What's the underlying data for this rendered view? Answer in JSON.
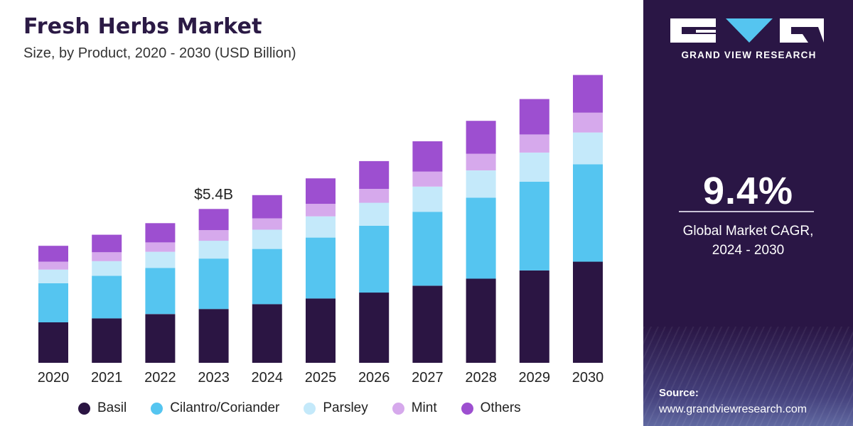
{
  "header": {
    "title": "Fresh Herbs Market",
    "subtitle": "Size, by Product, 2020 - 2030 (USD Billion)"
  },
  "chart_data": {
    "type": "bar",
    "stacked": true,
    "title": "Fresh Herbs Market",
    "subtitle": "Size, by Product, 2020 - 2030 (USD Billion)",
    "xlabel": "",
    "ylabel": "",
    "categories": [
      "2020",
      "2021",
      "2022",
      "2023",
      "2024",
      "2025",
      "2026",
      "2027",
      "2028",
      "2029",
      "2030"
    ],
    "series": [
      {
        "name": "Basil",
        "color": "#2b1543",
        "values": [
          1.43,
          1.57,
          1.72,
          1.9,
          2.07,
          2.27,
          2.48,
          2.72,
          2.97,
          3.26,
          3.57
        ]
      },
      {
        "name": "Cilantro/Coriander",
        "color": "#55c5f0",
        "values": [
          1.38,
          1.5,
          1.63,
          1.78,
          1.95,
          2.15,
          2.36,
          2.61,
          2.86,
          3.13,
          3.44
        ]
      },
      {
        "name": "Parsley",
        "color": "#c4e9fa",
        "values": [
          0.48,
          0.52,
          0.57,
          0.63,
          0.68,
          0.75,
          0.81,
          0.89,
          0.96,
          1.03,
          1.12
        ]
      },
      {
        "name": "Mint",
        "color": "#d6a9ec",
        "values": [
          0.28,
          0.31,
          0.33,
          0.37,
          0.4,
          0.44,
          0.49,
          0.53,
          0.59,
          0.64,
          0.7
        ]
      },
      {
        "name": "Others",
        "color": "#9d4fd0",
        "values": [
          0.56,
          0.62,
          0.68,
          0.75,
          0.82,
          0.9,
          0.98,
          1.07,
          1.16,
          1.25,
          1.33
        ]
      }
    ],
    "ylim": [
      0,
      10.3
    ],
    "grid": false,
    "legend": "bottom",
    "annotations": [
      {
        "category": "2023",
        "text": "$5.4B"
      }
    ]
  },
  "panel": {
    "logo_text": "GRAND VIEW RESEARCH",
    "cagr_value": "9.4%",
    "cagr_label_line1": "Global Market CAGR,",
    "cagr_label_line2": "2024 - 2030",
    "source_label": "Source:",
    "source_url": "www.grandviewresearch.com",
    "background_color": "#2a1645"
  }
}
